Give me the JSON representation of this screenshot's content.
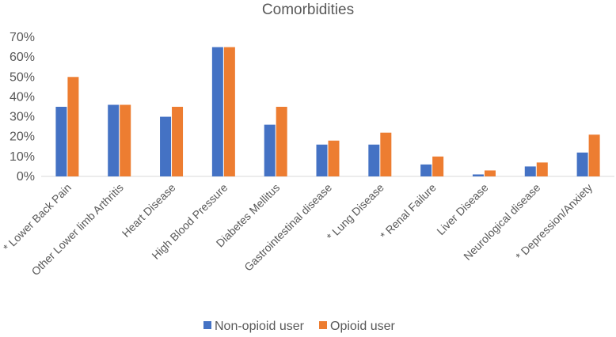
{
  "chart_data": {
    "type": "bar",
    "title": "Comorbidities",
    "xlabel": "",
    "ylabel": "",
    "ylim": [
      0,
      0.7
    ],
    "yticks": [
      0,
      0.1,
      0.2,
      0.3,
      0.4,
      0.5,
      0.6,
      0.7
    ],
    "ytick_labels": [
      "0%",
      "10%",
      "20%",
      "30%",
      "40%",
      "50%",
      "60%",
      "70%"
    ],
    "grid": false,
    "legend_position": "bottom",
    "categories": [
      "* Lower Back Pain",
      "Other Lower limb Arthritis",
      "Heart Disease",
      "High Blood Pressure",
      "Diabetes Mellitus",
      "Gastrointestinal disease",
      "* Lung Disease",
      "* Renal Failure",
      "Liver Disease",
      "Neurological disease",
      "* Depression/Anxiety"
    ],
    "series": [
      {
        "name": "Non-opioid user",
        "color": "#4472C4",
        "values": [
          0.35,
          0.36,
          0.3,
          0.65,
          0.26,
          0.16,
          0.16,
          0.06,
          0.01,
          0.05,
          0.12
        ]
      },
      {
        "name": "Opioid user",
        "color": "#ED7D31",
        "values": [
          0.5,
          0.36,
          0.35,
          0.65,
          0.35,
          0.18,
          0.22,
          0.1,
          0.03,
          0.07,
          0.21
        ]
      }
    ]
  }
}
